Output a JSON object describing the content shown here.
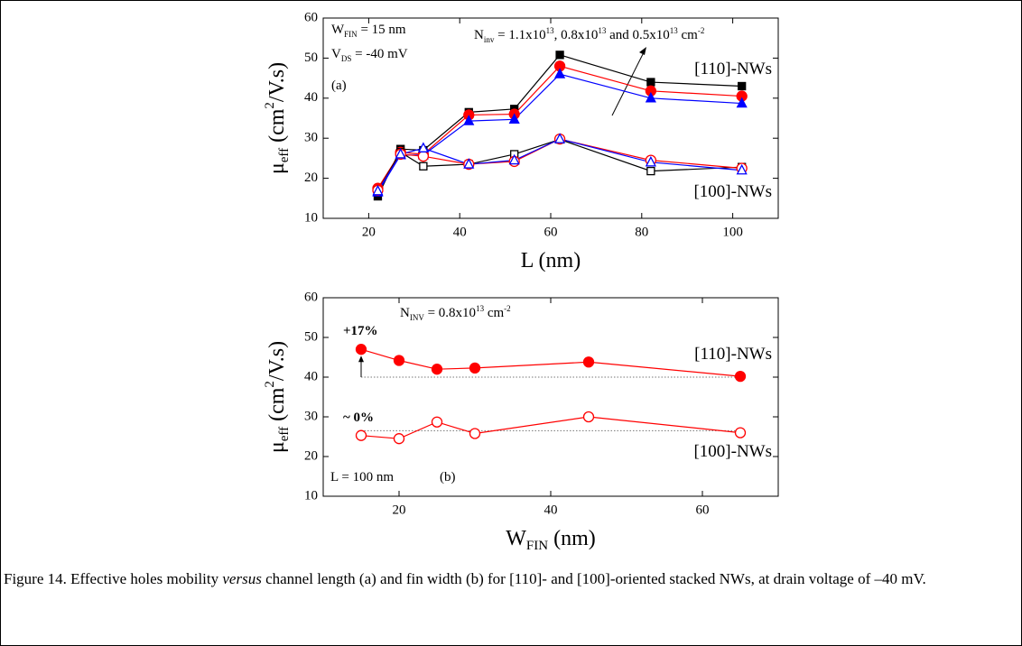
{
  "chart_data": [
    {
      "type": "line",
      "x": [
        22,
        27,
        32,
        42,
        52,
        62,
        82,
        102
      ],
      "xlim": [
        10,
        110
      ],
      "xticks": [
        20,
        40,
        60,
        80,
        100
      ],
      "ylim": [
        10,
        60
      ],
      "yticks": [
        10,
        20,
        30,
        40,
        50,
        60
      ],
      "xlabel": [
        {
          "text": "L (nm)"
        }
      ],
      "ylabel": [
        {
          "text": "μ"
        },
        {
          "text": "eff",
          "shift": "sub"
        },
        {
          "text": " (cm"
        },
        {
          "text": "2",
          "shift": "super"
        },
        {
          "text": "/V.s)"
        }
      ],
      "series": [
        {
          "color": "#000000",
          "marker": "square",
          "filled": true,
          "values": [
            15.5,
            27.3,
            27,
            36.5,
            37.3,
            50.8,
            44,
            43
          ]
        },
        {
          "color": "#ff0000",
          "marker": "circle",
          "filled": true,
          "values": [
            17.5,
            26.5,
            26,
            35.8,
            36,
            48,
            41.8,
            40.5
          ]
        },
        {
          "color": "#0000ff",
          "marker": "triangle",
          "filled": true,
          "values": [
            16.5,
            25.8,
            25.8,
            34.3,
            34.7,
            46,
            40,
            38.7
          ]
        },
        {
          "color": "#000000",
          "marker": "square",
          "filled": false,
          "values": [
            17,
            26.5,
            23,
            23.5,
            26,
            29.7,
            21.8,
            22.8
          ]
        },
        {
          "color": "#ff0000",
          "marker": "circle",
          "filled": false,
          "values": [
            17,
            26,
            25.5,
            23.5,
            24.2,
            29.8,
            24.5,
            22.5
          ]
        },
        {
          "color": "#0000ff",
          "marker": "triangle",
          "filled": false,
          "values": [
            16.8,
            26,
            27.5,
            23.5,
            24.5,
            29.8,
            24,
            22
          ]
        }
      ],
      "annotations": [
        [
          {
            "text": "W"
          },
          {
            "text": "FIN",
            "shift": "sub"
          },
          {
            "text": " = 15 nm"
          }
        ],
        [
          {
            "text": "V"
          },
          {
            "text": "DS",
            "shift": "sub"
          },
          {
            "text": " = -40 mV"
          }
        ],
        [
          {
            "text": "(a)"
          }
        ],
        [
          {
            "text": "N"
          },
          {
            "text": "inv",
            "shift": "sub"
          },
          {
            "text": " = 1.1x10"
          },
          {
            "text": "13",
            "shift": "super"
          },
          {
            "text": ", 0.8x10"
          },
          {
            "text": "13",
            "shift": "super"
          },
          {
            "text": " and 0.5x10"
          },
          {
            "text": "13",
            "shift": "super"
          },
          {
            "text": " cm"
          },
          {
            "text": "-2",
            "shift": "super"
          }
        ],
        [
          {
            "text": "[110]-NWs"
          }
        ],
        [
          {
            "text": "[100]-NWs"
          }
        ]
      ]
    },
    {
      "type": "line",
      "x": [
        15,
        20,
        25,
        30,
        45,
        65
      ],
      "xlim": [
        10,
        70
      ],
      "xticks": [
        20,
        40,
        60
      ],
      "ylim": [
        10,
        60
      ],
      "yticks": [
        10,
        20,
        30,
        40,
        50,
        60
      ],
      "xlabel": [
        {
          "text": "W"
        },
        {
          "text": "FIN",
          "shift": "sub"
        },
        {
          "text": " (nm)"
        }
      ],
      "ylabel": [
        {
          "text": "μ"
        },
        {
          "text": "eff",
          "shift": "sub"
        },
        {
          "text": " (cm"
        },
        {
          "text": "2",
          "shift": "super"
        },
        {
          "text": "/V.s)"
        }
      ],
      "series": [
        {
          "color": "#ff0000",
          "marker": "circle",
          "filled": true,
          "values": [
            47,
            44.2,
            42,
            42.3,
            43.8,
            40.2
          ]
        },
        {
          "color": "#ff0000",
          "marker": "circle",
          "filled": false,
          "values": [
            25.3,
            24.5,
            28.7,
            25.8,
            30,
            26
          ]
        }
      ],
      "reference_lines": [
        40,
        26.5
      ],
      "annotations": [
        [
          {
            "text": "N"
          },
          {
            "text": "INV",
            "shift": "sub"
          },
          {
            "text": " = 0.8x10"
          },
          {
            "text": "13",
            "shift": "super"
          },
          {
            "text": " cm"
          },
          {
            "text": "-2",
            "shift": "super"
          }
        ],
        [
          {
            "text": "+17%",
            "weight": "bold"
          }
        ],
        [
          {
            "text": "~ 0%",
            "weight": "bold"
          }
        ],
        [
          {
            "text": "[110]-NWs"
          }
        ],
        [
          {
            "text": "[100]-NWs"
          }
        ],
        [
          {
            "text": "L = 100 nm"
          }
        ],
        [
          {
            "text": "(b)"
          }
        ]
      ]
    }
  ],
  "caption": [
    {
      "text": "Figure 14. Effective holes mobility "
    },
    {
      "text": "versus",
      "style": "italic"
    },
    {
      "text": " channel length (a) and fin width (b) for [110]- and [100]-oriented stacked NWs, at drain voltage of –40 mV."
    }
  ]
}
